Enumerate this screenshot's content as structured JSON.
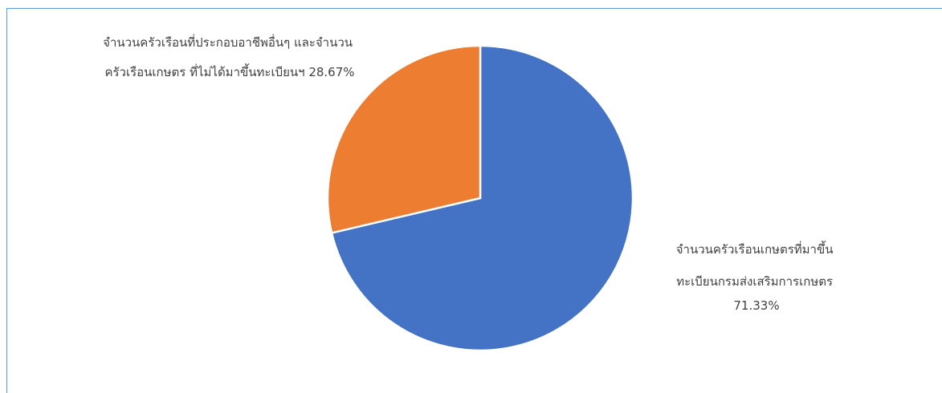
{
  "chart_data": {
    "type": "pie",
    "title": "",
    "slices": [
      {
        "label_lines": [
          "จำนวนครัวเรือนเกษตรที่มาขึ้น",
          "ทะเบียนกรมส่งเสริมการเกษตร",
          "71.33%"
        ],
        "value": 71.33,
        "color": "#4472c4"
      },
      {
        "label_lines": [
          "จำนวนครัวเรือนที่ประกอบอาชีพอื่นๆ และจำนวน",
          "ครัวเรือนเกษตร  ที่ไม่ได้มาขึ้นทะเบียนฯ 28.67%"
        ],
        "value": 28.67,
        "color": "#ed7d31"
      }
    ]
  }
}
